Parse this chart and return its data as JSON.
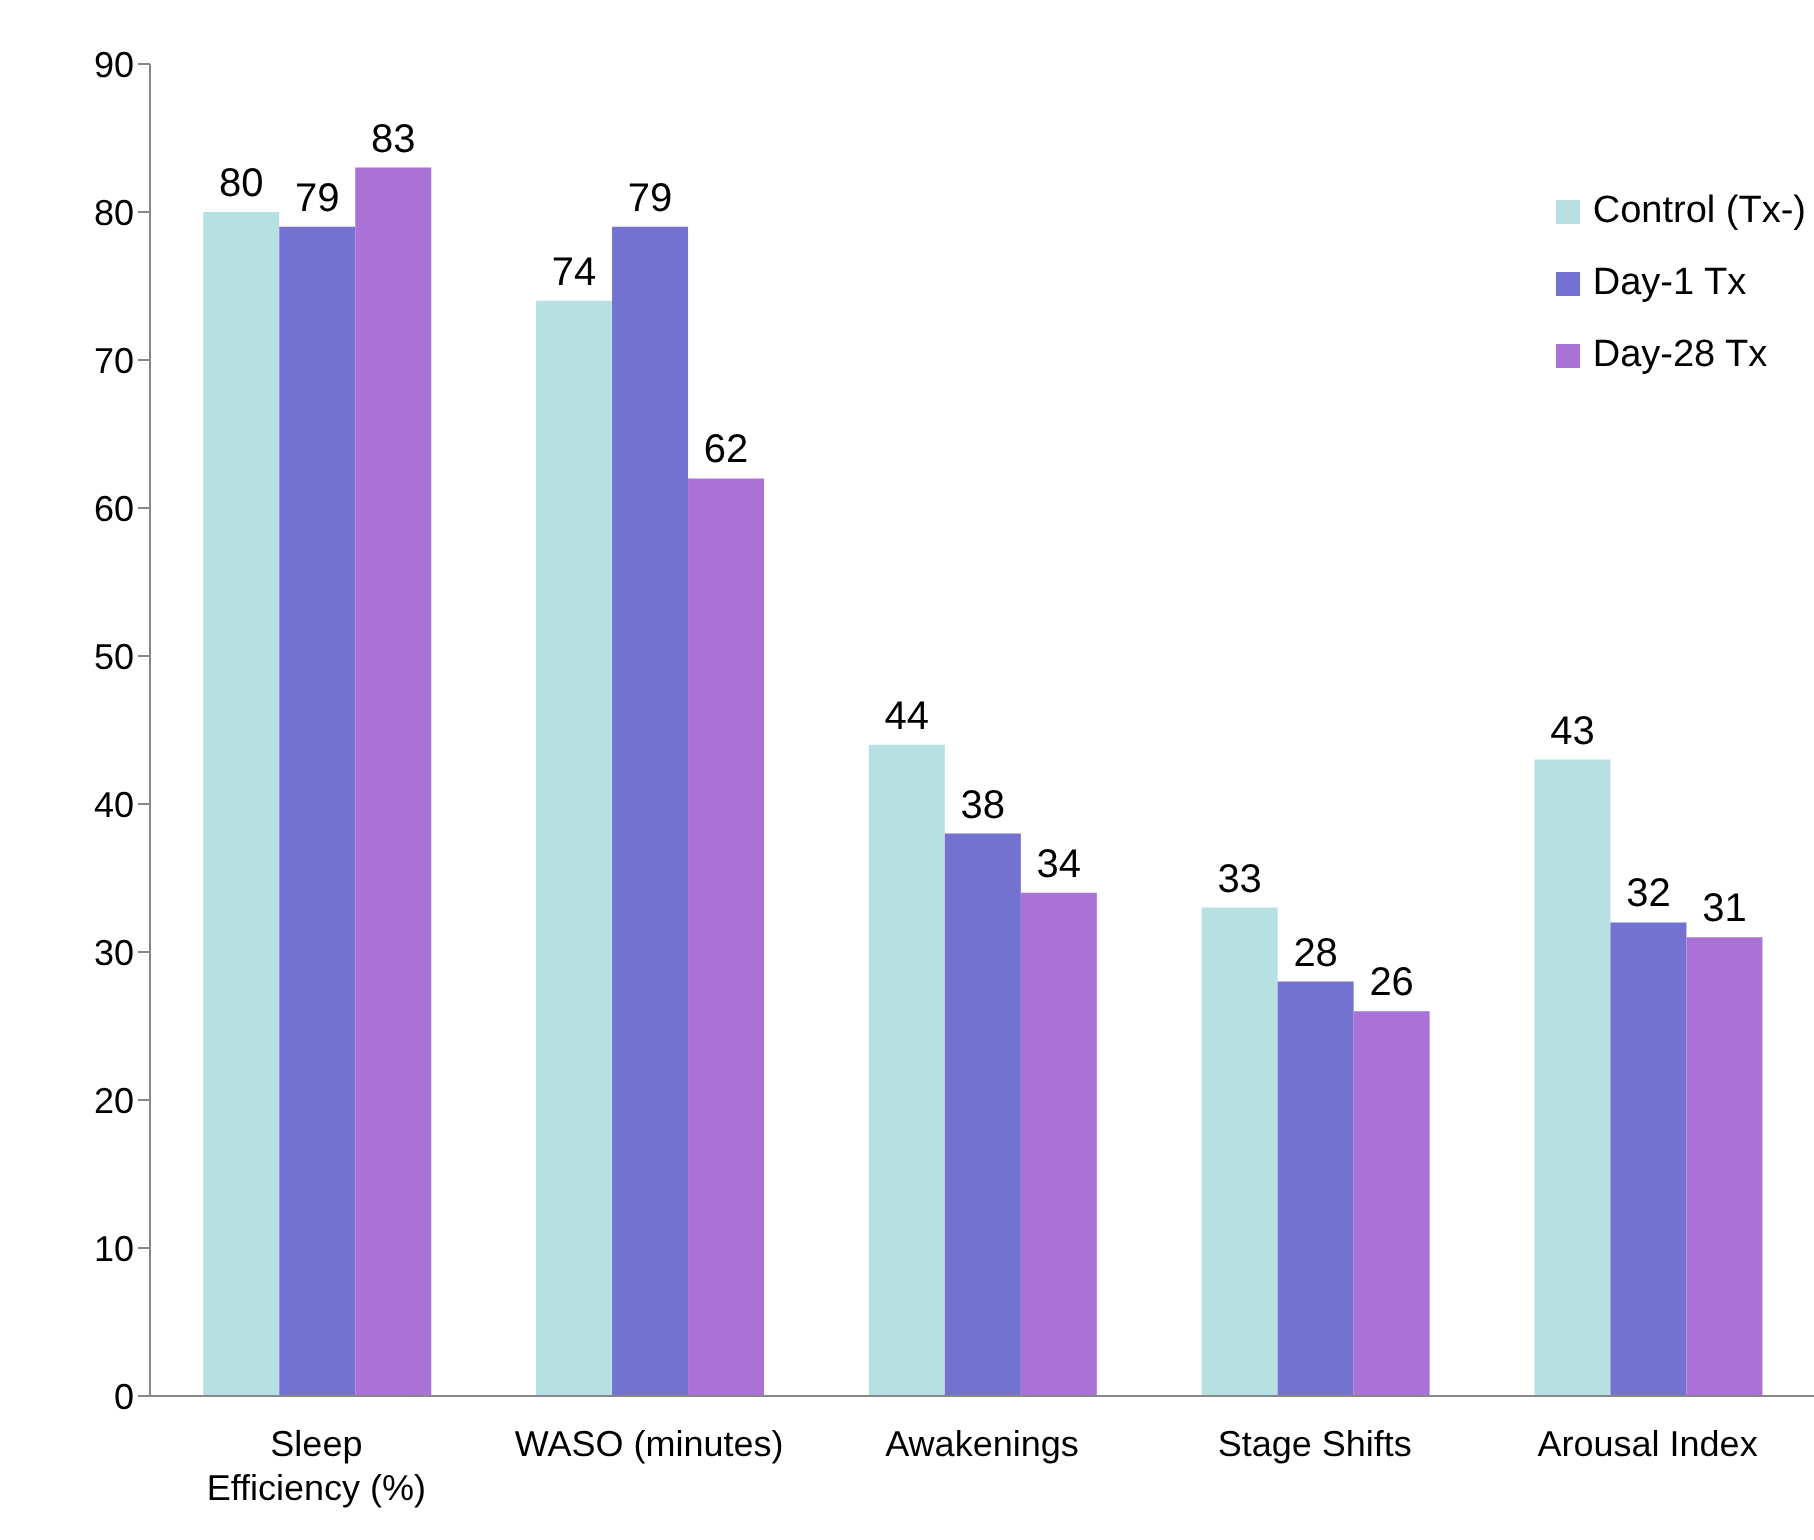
{
  "chart_data": {
    "type": "bar",
    "categories": [
      "Sleep Efficiency (%)",
      "WASO (minutes)",
      "Awakenings",
      "Stage Shifts",
      "Arousal Index"
    ],
    "series": [
      {
        "name": "Control (Tx-)",
        "color": "#b7e0e2",
        "values": [
          80,
          74,
          44,
          33,
          43
        ]
      },
      {
        "name": "Day-1 Tx",
        "color": "#7472d0",
        "values": [
          79,
          79,
          38,
          28,
          32
        ]
      },
      {
        "name": "Day-28 Tx",
        "color": "#aa72d6",
        "values": [
          83,
          62,
          34,
          26,
          31
        ]
      }
    ],
    "ylim": [
      0,
      90
    ],
    "yticks": [
      0,
      10,
      20,
      30,
      40,
      50,
      60,
      70,
      80,
      90
    ],
    "grid": false,
    "legend": "right",
    "data_labels": true
  }
}
